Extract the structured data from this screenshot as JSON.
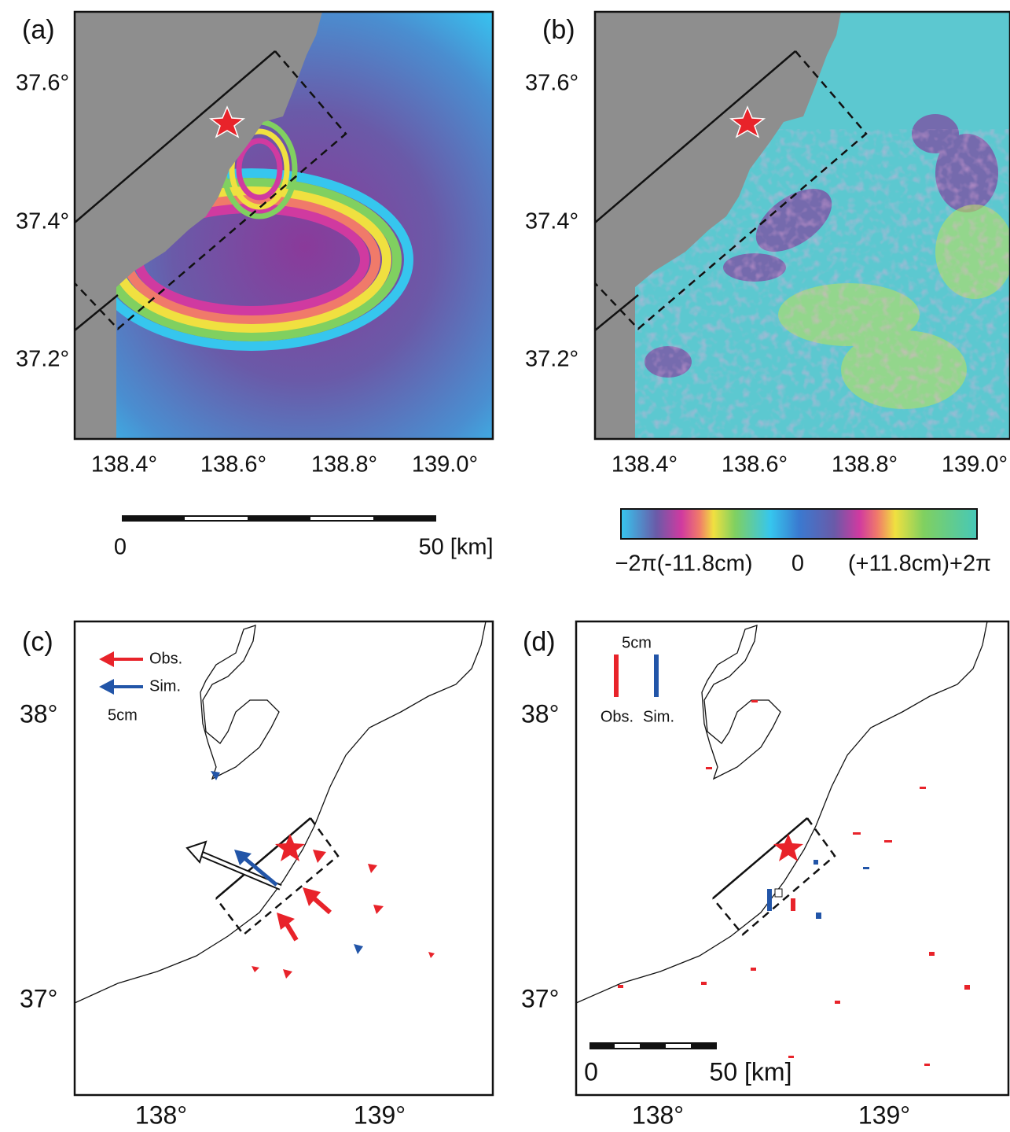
{
  "panels": [
    {
      "label": "(a)",
      "y_ticks": [
        "37.6°",
        "37.4°",
        "37.2°"
      ],
      "x_ticks": [
        "138.4°",
        "138.6°",
        "138.8°",
        "139.0°"
      ]
    },
    {
      "label": "(b)",
      "y_ticks": [
        "37.6°",
        "37.4°",
        "37.2°"
      ],
      "x_ticks": [
        "138.4°",
        "138.6°",
        "138.8°",
        "139.0°"
      ]
    },
    {
      "label": "(c)",
      "y_ticks": [
        "38°",
        "37°"
      ],
      "x_ticks": [
        "138°",
        "139°"
      ]
    },
    {
      "label": "(d)",
      "y_ticks": [
        "38°",
        "37°"
      ],
      "x_ticks": [
        "138°",
        "139°"
      ]
    }
  ],
  "scale_bar_a": {
    "start": "0",
    "end": "50 [km]"
  },
  "colorbar": {
    "left": "−2π(-11.8cm)",
    "center": "0",
    "right": "(+11.8cm)+2π"
  },
  "legend_c": {
    "obs": "Obs.",
    "sim": "Sim.",
    "scale": "5cm"
  },
  "legend_d": {
    "scale": "5cm",
    "obs": "Obs.",
    "sim": "Sim."
  },
  "scale_bar_d": {
    "start": "0",
    "end": "50 [km]"
  }
}
